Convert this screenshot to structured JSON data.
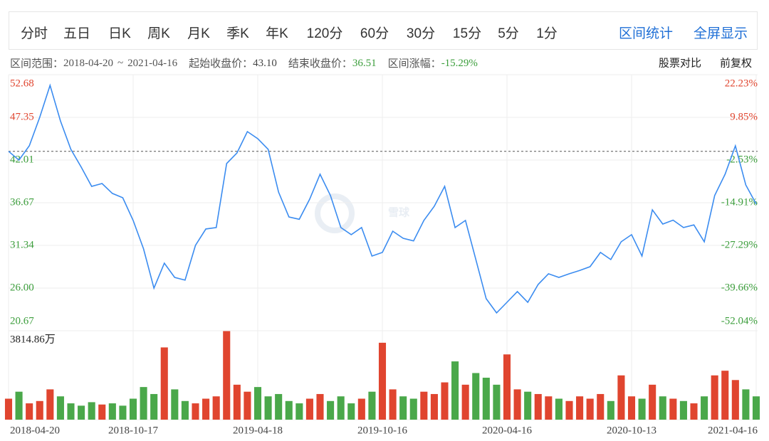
{
  "toolbar": {
    "periods": [
      "分时",
      "五日",
      "日K",
      "周K",
      "月K",
      "季K",
      "年K",
      "120分",
      "60分",
      "30分",
      "15分",
      "5分",
      "1分"
    ],
    "actions": [
      "区间统计",
      "全屏显示"
    ]
  },
  "info": {
    "range_label": "区间范围：",
    "range_start": "2018-04-20",
    "range_sep": "~",
    "range_end": "2021-04-16",
    "start_close_label": "起始收盘价：",
    "start_close": {
      "value": 43.1,
      "label": "43.10"
    },
    "end_close_label": "结束收盘价：",
    "end_close": 36.51,
    "change_label": "区间涨幅：",
    "change": {
      "value": -15.29,
      "label": "-15.29%"
    },
    "links": [
      "股票对比",
      "前复权"
    ]
  },
  "chart_data": {
    "type": "stock",
    "watermark": "雪球",
    "grid": true,
    "categories": [
      "2018-04-20",
      null,
      null,
      null,
      null,
      null,
      null,
      null,
      null,
      null,
      null,
      null,
      "2018-10-17",
      null,
      null,
      null,
      null,
      null,
      null,
      null,
      null,
      null,
      null,
      null,
      "2019-04-18",
      null,
      null,
      null,
      null,
      null,
      null,
      null,
      null,
      null,
      null,
      null,
      "2019-10-16",
      null,
      null,
      null,
      null,
      null,
      null,
      null,
      null,
      null,
      null,
      null,
      "2020-04-16",
      null,
      null,
      null,
      null,
      null,
      null,
      null,
      null,
      null,
      null,
      null,
      "2020-10-13",
      null,
      null,
      null,
      null,
      null,
      null,
      null,
      null,
      null,
      null,
      null,
      "2021-04-16"
    ],
    "price": {
      "color": "#3b8cf0",
      "values": [
        43.1,
        42.0,
        43.8,
        47.35,
        51.35,
        46.9,
        43.35,
        41.12,
        38.72,
        39.08,
        37.84,
        37.3,
        34.46,
        30.9,
        26.0,
        29.12,
        27.34,
        27.0,
        31.34,
        33.39,
        33.57,
        41.57,
        42.9,
        45.57,
        44.68,
        43.35,
        38.01,
        34.9,
        34.6,
        37.12,
        40.23,
        37.57,
        33.57,
        32.68,
        33.57,
        30.01,
        30.46,
        33.12,
        32.23,
        31.9,
        34.46,
        36.23,
        38.72,
        33.57,
        34.46,
        29.57,
        24.68,
        22.9,
        24.23,
        25.57,
        24.23,
        26.46,
        27.79,
        27.34,
        27.79,
        28.2,
        28.68,
        30.46,
        29.57,
        31.79,
        32.68,
        30.01,
        35.79,
        34.01,
        34.5,
        33.57,
        33.9,
        31.79,
        37.57,
        40.23,
        43.79,
        38.9,
        36.51
      ],
      "ylim": [
        20.67,
        52.68
      ],
      "yticks": [
        52.68,
        47.35,
        42.01,
        36.67,
        31.34,
        {
          "value": 26,
          "label": "26.00"
        },
        20.67
      ],
      "y2lim": [
        -52.04,
        22.23
      ],
      "y2ticks": [
        {
          "value": 22.23,
          "label": "22.23%"
        },
        {
          "value": 9.85,
          "label": "9.85%"
        },
        {
          "value": -2.53,
          "label": "-2.53%"
        },
        {
          "value": -14.91,
          "label": "-14.91%"
        },
        {
          "value": -27.29,
          "label": "-27.29%"
        },
        {
          "value": -39.66,
          "label": "-39.66%"
        },
        {
          "value": -52.04,
          "label": "-52.04%"
        }
      ],
      "up_color": "#e0452f",
      "down_color": "#3c9e3c"
    },
    "volume": {
      "up_color": "#e0452f",
      "down_color": "#4aa84a",
      "values": [
        900,
        1200,
        700,
        800,
        1300,
        1000,
        700,
        600,
        750,
        650,
        700,
        600,
        900,
        1400,
        1100,
        3100,
        1300,
        800,
        700,
        900,
        1000,
        3800,
        1500,
        1200,
        1400,
        1000,
        1100,
        800,
        700,
        900,
        1100,
        800,
        1000,
        700,
        900,
        1200,
        3300,
        1300,
        1000,
        900,
        1200,
        1100,
        1600,
        2500,
        1500,
        2000,
        1800,
        1500,
        2800,
        1300,
        1200,
        1100,
        1000,
        900,
        800,
        1000,
        900,
        1100,
        800,
        1900,
        1000,
        900,
        1500,
        1000,
        900,
        800,
        700,
        1000,
        1900,
        2100,
        1700,
        1300,
        1000
      ],
      "ylim": [
        0,
        3814.86
      ],
      "yticks": [
        {
          "value": 3814.86,
          "label": "3814.86万"
        }
      ]
    }
  }
}
